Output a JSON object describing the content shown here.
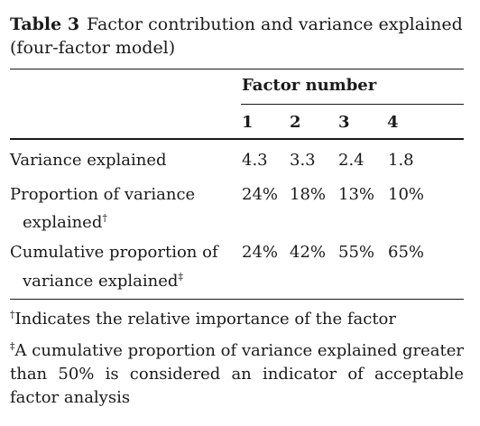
{
  "table": {
    "label": "Table 3",
    "caption": "Factor contribution and variance explained (four-factor model)",
    "factor_header": "Factor number",
    "columns": [
      "1",
      "2",
      "3",
      "4"
    ],
    "rows": [
      {
        "label_line1": "Variance explained",
        "label_line2": "",
        "marker": "",
        "values": [
          "4.3",
          "3.3",
          "2.4",
          "1.8"
        ]
      },
      {
        "label_line1": "Proportion of variance",
        "label_line2": "explained",
        "marker": "†",
        "values": [
          "24%",
          "18%",
          "13%",
          "10%"
        ]
      },
      {
        "label_line1": "Cumulative proportion of",
        "label_line2": "variance explained",
        "marker": "‡",
        "values": [
          "24%",
          "42%",
          "55%",
          "65%"
        ]
      }
    ]
  },
  "footnotes": [
    {
      "marker": "†",
      "text": "Indicates the relative importance of the factor"
    },
    {
      "marker": "‡",
      "text": "A cumulative proportion of variance explained greater than 50% is considered an indicator of acceptable factor analysis"
    }
  ]
}
